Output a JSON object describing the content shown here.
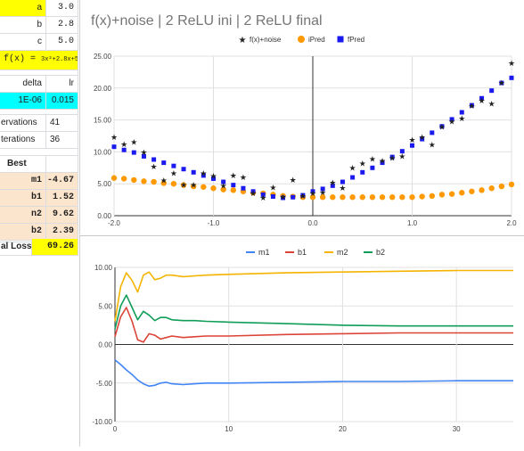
{
  "sheet": {
    "params": [
      {
        "name": "a",
        "value": "3.0"
      },
      {
        "name": "b",
        "value": "2.8"
      },
      {
        "name": "c",
        "value": "5.0"
      }
    ],
    "formula_label": "f(x) =",
    "formula_value": "3x²+2.8x+5",
    "delta_header": "delta",
    "lr_header": "lr",
    "delta_value": "1E-06",
    "lr_value": "0.015",
    "observations_label": "ervations",
    "observations_value": "41",
    "iterations_label": "terations",
    "iterations_value": "36",
    "best_label": "Best",
    "best": [
      {
        "name": "m1",
        "value": "-4.67"
      },
      {
        "name": "b1",
        "value": "1.52"
      },
      {
        "name": "n2",
        "value": "9.62"
      },
      {
        "name": "b2",
        "value": "2.39"
      }
    ],
    "final_loss_label": "al Loss",
    "final_loss_value": "69.26"
  },
  "colors": {
    "star": "#222222",
    "ipred": "#ff9900",
    "fpred": "#1a1aee",
    "m1": "#4285f4",
    "b1": "#db4437",
    "m2": "#f4b400",
    "b2": "#0f9d58"
  },
  "chart_data": [
    {
      "type": "scatter",
      "title": "f(x)+noise  |  2 ReLU ini  |  2 ReLU final",
      "legend_position": "top",
      "xlim": [
        -2,
        2
      ],
      "ylim": [
        0,
        25
      ],
      "xticks": [
        "-2.0",
        "-1.0",
        "0.0",
        "1.0",
        "2.0"
      ],
      "yticks": [
        "0.00",
        "5.00",
        "10.00",
        "15.00",
        "20.00",
        "25.00"
      ],
      "series": [
        {
          "name": "f(x)+noise",
          "x": [
            -2.0,
            -1.9,
            -1.8,
            -1.7,
            -1.6,
            -1.5,
            -1.4,
            -1.3,
            -1.2,
            -1.1,
            -1.0,
            -0.9,
            -0.8,
            -0.7,
            -0.6,
            -0.5,
            -0.4,
            -0.3,
            -0.2,
            -0.1,
            0.0,
            0.1,
            0.2,
            0.3,
            0.4,
            0.5,
            0.6,
            0.7,
            0.8,
            0.9,
            1.0,
            1.1,
            1.2,
            1.3,
            1.4,
            1.5,
            1.6,
            1.7,
            1.8,
            1.9,
            2.0
          ],
          "y": [
            12.3,
            11.2,
            11.5,
            9.9,
            7.7,
            5.5,
            6.6,
            4.8,
            4.8,
            6.6,
            6.2,
            4.7,
            6.3,
            6.0,
            3.5,
            2.8,
            4.4,
            2.9,
            5.6,
            3.1,
            3.5,
            3.6,
            5.2,
            4.3,
            7.5,
            8.2,
            8.9,
            8.6,
            9.0,
            9.3,
            11.9,
            12.3,
            11.1,
            13.9,
            14.7,
            15.2,
            17.2,
            18.0,
            17.5,
            20.8,
            23.9
          ]
        },
        {
          "name": "iPred",
          "x": [
            -2.0,
            -1.9,
            -1.8,
            -1.7,
            -1.6,
            -1.5,
            -1.4,
            -1.3,
            -1.2,
            -1.1,
            -1.0,
            -0.9,
            -0.8,
            -0.7,
            -0.6,
            -0.5,
            -0.4,
            -0.3,
            -0.2,
            -0.1,
            0.0,
            0.1,
            0.2,
            0.3,
            0.4,
            0.5,
            0.6,
            0.7,
            0.8,
            0.9,
            1.0,
            1.1,
            1.2,
            1.3,
            1.4,
            1.5,
            1.6,
            1.7,
            1.8,
            1.9,
            2.0
          ],
          "y": [
            5.9,
            5.8,
            5.6,
            5.4,
            5.3,
            5.1,
            5.0,
            4.8,
            4.6,
            4.5,
            4.3,
            4.1,
            4.0,
            3.8,
            3.6,
            3.5,
            3.3,
            3.1,
            3.0,
            2.9,
            2.9,
            2.9,
            2.9,
            2.9,
            2.9,
            2.9,
            2.9,
            2.9,
            2.9,
            2.9,
            2.9,
            3.0,
            3.1,
            3.3,
            3.4,
            3.6,
            3.8,
            4.0,
            4.3,
            4.6,
            4.9
          ]
        },
        {
          "name": "fPred",
          "x": [
            -2.0,
            -1.9,
            -1.8,
            -1.7,
            -1.6,
            -1.5,
            -1.4,
            -1.3,
            -1.2,
            -1.1,
            -1.0,
            -0.9,
            -0.8,
            -0.7,
            -0.6,
            -0.5,
            -0.4,
            -0.3,
            -0.2,
            -0.1,
            0.0,
            0.1,
            0.2,
            0.3,
            0.4,
            0.5,
            0.6,
            0.7,
            0.8,
            0.9,
            1.0,
            1.1,
            1.2,
            1.3,
            1.4,
            1.5,
            1.6,
            1.7,
            1.8,
            1.9,
            2.0
          ],
          "y": [
            10.8,
            10.3,
            9.9,
            9.3,
            8.8,
            8.3,
            7.8,
            7.3,
            6.8,
            6.3,
            5.8,
            5.3,
            4.8,
            4.3,
            3.8,
            3.3,
            3.0,
            2.8,
            2.9,
            3.2,
            3.8,
            4.2,
            4.7,
            5.3,
            6.0,
            6.8,
            7.5,
            8.3,
            9.2,
            10.1,
            11.0,
            12.0,
            13.0,
            14.0,
            15.1,
            16.2,
            17.3,
            18.4,
            19.6,
            20.8,
            21.6
          ]
        }
      ]
    },
    {
      "type": "line",
      "legend_position": "top",
      "xlim": [
        0,
        35
      ],
      "ylim": [
        -10,
        10
      ],
      "xticks": [
        "0",
        "10",
        "20",
        "30"
      ],
      "yticks": [
        "-10.00",
        "-5.00",
        "0.00",
        "5.00",
        "10.00"
      ],
      "series": [
        {
          "name": "m1",
          "x": [
            0,
            0.5,
            1,
            1.5,
            2,
            2.5,
            3,
            3.5,
            4,
            4.5,
            5,
            6,
            7,
            8,
            10,
            15,
            20,
            25,
            30,
            35
          ],
          "y": [
            -2.0,
            -2.6,
            -3.3,
            -3.9,
            -4.6,
            -5.1,
            -5.4,
            -5.3,
            -5.0,
            -4.9,
            -5.1,
            -5.2,
            -5.1,
            -5.0,
            -5.0,
            -4.9,
            -4.8,
            -4.8,
            -4.7,
            -4.7
          ]
        },
        {
          "name": "b1",
          "x": [
            0,
            0.5,
            1,
            1.5,
            2,
            2.5,
            3,
            3.5,
            4,
            4.5,
            5,
            6,
            7,
            8,
            10,
            15,
            20,
            25,
            30,
            35
          ],
          "y": [
            1.0,
            3.6,
            4.8,
            3.0,
            0.6,
            0.3,
            1.4,
            1.2,
            0.7,
            0.9,
            1.1,
            0.9,
            1.0,
            1.1,
            1.1,
            1.3,
            1.4,
            1.5,
            1.5,
            1.5
          ]
        },
        {
          "name": "m2",
          "x": [
            0,
            0.5,
            1,
            1.5,
            2,
            2.5,
            3,
            3.5,
            4,
            4.5,
            5,
            6,
            7,
            8,
            10,
            15,
            20,
            25,
            30,
            35
          ],
          "y": [
            3.0,
            7.5,
            9.3,
            8.3,
            6.8,
            9.0,
            9.4,
            8.4,
            8.6,
            9.0,
            9.0,
            8.8,
            8.9,
            9.0,
            9.1,
            9.3,
            9.4,
            9.5,
            9.6,
            9.6
          ]
        },
        {
          "name": "b2",
          "x": [
            0,
            0.5,
            1,
            1.5,
            2,
            2.5,
            3,
            3.5,
            4,
            4.5,
            5,
            6,
            7,
            8,
            10,
            15,
            20,
            25,
            30,
            35
          ],
          "y": [
            2.0,
            5.0,
            6.4,
            4.8,
            3.2,
            4.3,
            3.8,
            3.1,
            3.5,
            3.5,
            3.2,
            3.1,
            3.1,
            3.0,
            2.9,
            2.7,
            2.5,
            2.4,
            2.4,
            2.4
          ]
        }
      ]
    }
  ]
}
